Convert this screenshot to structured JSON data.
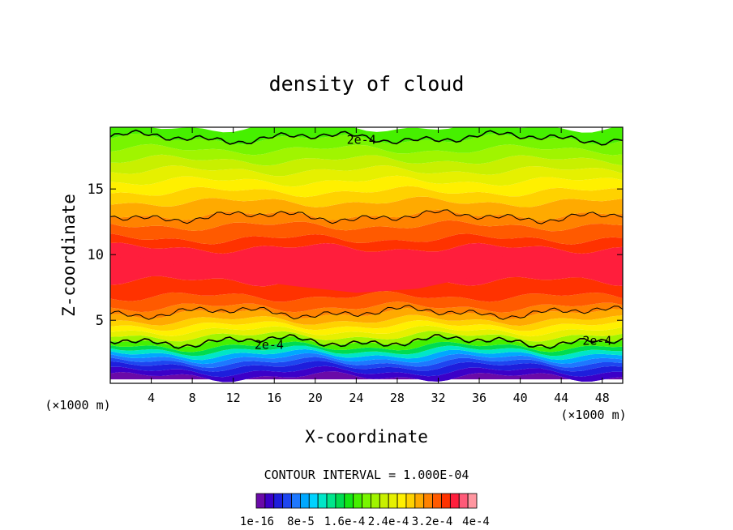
{
  "chart_data": {
    "type": "heatmap",
    "title": "density of cloud",
    "xlabel": "X-coordinate",
    "ylabel": "Z-coordinate",
    "x_unit_label_left": "(×1000 m)",
    "x_unit_label_right": "(×1000 m)",
    "xlim": [
      0,
      50
    ],
    "ylim": [
      0.2,
      19.7
    ],
    "x_ticks": [
      4,
      8,
      12,
      16,
      20,
      24,
      28,
      32,
      36,
      40,
      44,
      48
    ],
    "y_ticks": [
      5,
      10,
      15
    ],
    "contour_interval_label": "CONTOUR INTERVAL = 1.000E-04",
    "contour_labels": [
      {
        "text": "2e-4",
        "x": 24.5,
        "z": 18.8
      },
      {
        "text": "2e-4",
        "x": 15.5,
        "z": 3.2
      },
      {
        "text": "2e-4",
        "x": 47.5,
        "z": 3.5
      }
    ],
    "colorbar_labels": [
      "1e-16",
      "8e-5",
      "1.6e-4",
      "2.4e-4",
      "3.2e-4",
      "4e-4"
    ],
    "colorbar_colors": [
      "#6a0aa8",
      "#3c00c8",
      "#1e1edc",
      "#1e46f0",
      "#1e78ff",
      "#00a8ff",
      "#00d2ff",
      "#00e6c8",
      "#00e68c",
      "#00dc50",
      "#14e614",
      "#46f000",
      "#78f500",
      "#a0f500",
      "#c8f000",
      "#e6f000",
      "#fff000",
      "#ffd200",
      "#ffaa00",
      "#ff8200",
      "#ff5a00",
      "#ff3200",
      "#ff1e3c",
      "#ff5a78",
      "#ff96a0"
    ],
    "profile": [
      {
        "z": 0.7,
        "level": 0
      },
      {
        "z": 1.1,
        "level": 1
      },
      {
        "z": 1.5,
        "level": 2
      },
      {
        "z": 1.8,
        "level": 3
      },
      {
        "z": 2.1,
        "level": 4
      },
      {
        "z": 2.4,
        "level": 5
      },
      {
        "z": 2.7,
        "level": 7
      },
      {
        "z": 3.0,
        "level": 9
      },
      {
        "z": 3.4,
        "level": 11
      },
      {
        "z": 3.8,
        "level": 13
      },
      {
        "z": 4.2,
        "level": 15
      },
      {
        "z": 4.6,
        "level": 16
      },
      {
        "z": 5.0,
        "level": 17
      },
      {
        "z": 5.5,
        "level": 18
      },
      {
        "z": 6.0,
        "level": 19
      },
      {
        "z": 6.8,
        "level": 20
      },
      {
        "z": 8.0,
        "level": 21
      },
      {
        "z": 10.5,
        "level": 22
      },
      {
        "z": 11.2,
        "level": 21
      },
      {
        "z": 12.2,
        "level": 20
      },
      {
        "z": 13.0,
        "level": 19
      },
      {
        "z": 14.0,
        "level": 18
      },
      {
        "z": 14.8,
        "level": 17
      },
      {
        "z": 15.6,
        "level": 16
      },
      {
        "z": 16.4,
        "level": 15
      },
      {
        "z": 17.2,
        "level": 14
      },
      {
        "z": 18.0,
        "level": 13
      },
      {
        "z": 18.8,
        "level": 12
      },
      {
        "z": 19.7,
        "level": 11
      }
    ]
  }
}
